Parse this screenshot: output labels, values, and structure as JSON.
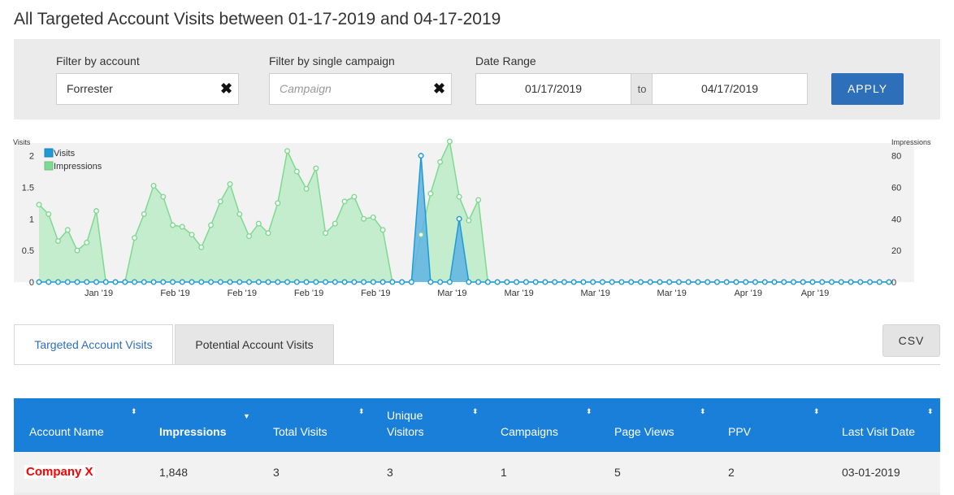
{
  "title": "All Targeted Account Visits between 01-17-2019 and 04-17-2019",
  "filters": {
    "account": {
      "label": "Filter by account",
      "value": "Forrester",
      "clear_icon": "✖"
    },
    "campaign": {
      "label": "Filter by single campaign",
      "placeholder": "Campaign",
      "clear_icon": "✖"
    },
    "date_range": {
      "label": "Date Range",
      "from": "01/17/2019",
      "separator": "to",
      "to": "04/17/2019"
    },
    "apply_label": "APPLY"
  },
  "chart_data": {
    "type": "area",
    "ylabel_left": "Visits",
    "ylabel_right": "Impressions",
    "left_ticks": [
      "0",
      "0.5",
      "1",
      "1.5",
      "2"
    ],
    "left_range": [
      0,
      2.2
    ],
    "right_ticks": [
      "0",
      "20",
      "40",
      "60",
      "80"
    ],
    "right_range": [
      0,
      88
    ],
    "x_ticks": [
      "Jan '19",
      "Feb '19",
      "Feb '19",
      "Feb '19",
      "Feb '19",
      "Mar '19",
      "Mar '19",
      "Mar '19",
      "Mar '19",
      "Apr '19",
      "Apr '19"
    ],
    "x_tick_index": [
      6,
      14,
      21,
      28,
      35,
      43,
      50,
      58,
      66,
      74,
      81
    ],
    "x_range_days": [
      "2019-01-17",
      "2019-04-17"
    ],
    "legend_position": "top-left",
    "series": [
      {
        "name": "Visits",
        "axis": "left",
        "color": "#1f9ad6",
        "fill": "#5fb3e3",
        "values": [
          0,
          0,
          0,
          0,
          0,
          0,
          0,
          0,
          0,
          0,
          0,
          0,
          0,
          0,
          0,
          0,
          0,
          0,
          0,
          0,
          0,
          0,
          0,
          0,
          0,
          0,
          0,
          0,
          0,
          0,
          0,
          0,
          0,
          0,
          0,
          0,
          0,
          0,
          0,
          0,
          2,
          0,
          0,
          0,
          1,
          0,
          0,
          0,
          0,
          0,
          0,
          0,
          0,
          0,
          0,
          0,
          0,
          0,
          0,
          0,
          0,
          0,
          0,
          0,
          0,
          0,
          0,
          0,
          0,
          0,
          0,
          0,
          0,
          0,
          0,
          0,
          0,
          0,
          0,
          0,
          0,
          0,
          0,
          0,
          0,
          0,
          0,
          0,
          0,
          0
        ]
      },
      {
        "name": "Impressions",
        "axis": "right",
        "color": "#7fd991",
        "fill": "#b7ebc3",
        "values": [
          49,
          43,
          26,
          33,
          20,
          25,
          45,
          0,
          0,
          0,
          28,
          43,
          61,
          54,
          36,
          35,
          30,
          22,
          36,
          51,
          62,
          43,
          29,
          37,
          31,
          50,
          83,
          70,
          59,
          72,
          31,
          37,
          51,
          54,
          40,
          41,
          33,
          0,
          0,
          0,
          30,
          56,
          76,
          89,
          54,
          39,
          52,
          0,
          0,
          0,
          0,
          0,
          0,
          0,
          0,
          0,
          0,
          0,
          0,
          0,
          0,
          0,
          0,
          0,
          0,
          0,
          0,
          0,
          0,
          0,
          0,
          0,
          0,
          0,
          0,
          0,
          0,
          0,
          0,
          0,
          0,
          0,
          0,
          0,
          0,
          0,
          0,
          0,
          0,
          0
        ]
      }
    ]
  },
  "tabs": [
    {
      "label": "Targeted Account Visits",
      "active": true
    },
    {
      "label": "Potential Account Visits",
      "active": false
    }
  ],
  "csv_label": "CSV",
  "table": {
    "columns": [
      {
        "label": "Account Name",
        "sort_icon": "⬍"
      },
      {
        "label": "Impressions",
        "sort_icon": "▼"
      },
      {
        "label": "Total Visits",
        "sort_icon": "⬍"
      },
      {
        "label": "Unique\nVisitors",
        "sort_icon": "⬍"
      },
      {
        "label": "Campaigns",
        "sort_icon": "⬍"
      },
      {
        "label": "Page Views",
        "sort_icon": "⬍"
      },
      {
        "label": "PPV",
        "sort_icon": "⬍"
      },
      {
        "label": "Last Visit Date",
        "sort_icon": "⬍"
      }
    ],
    "rows": [
      [
        "Company X",
        "1,848",
        "3",
        "3",
        "1",
        "5",
        "2",
        "03-01-2019"
      ]
    ]
  }
}
